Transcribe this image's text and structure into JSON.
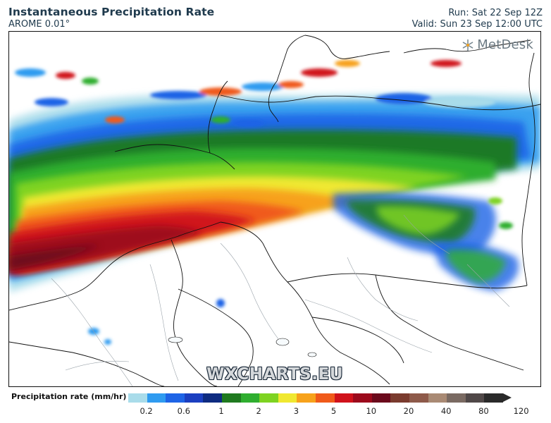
{
  "header": {
    "title": "Instantaneous Precipitation Rate",
    "model": "AROME 0.01°",
    "run": "Run: Sat 22 Sep 12Z",
    "valid": "Valid: Sun 23 Sep 12:00 UTC"
  },
  "branding": {
    "logo_text": "MetDesk",
    "logo_icon": "snowflake-icon",
    "watermark": "WXCHARTS.EU"
  },
  "legend": {
    "title": "Precipitation rate (mm/hr)",
    "colors": [
      "#a9dcea",
      "#2f9bf0",
      "#1e64e6",
      "#1b3fc0",
      "#0e2b80",
      "#1f7a1f",
      "#2fae2f",
      "#7ed321",
      "#f0e830",
      "#f7a21b",
      "#f05a1a",
      "#d0121b",
      "#9c0a1c",
      "#6b0a1c",
      "#7a3b2e",
      "#8e5a4a",
      "#a98a74",
      "#7a6a62",
      "#504848",
      "#2a2a2a"
    ],
    "labels": [
      "0.2",
      "0.6",
      "1",
      "2",
      "3",
      "5",
      "10",
      "20",
      "40",
      "80",
      "120"
    ]
  },
  "colors": {
    "text": "#1f3a4d",
    "border": "#111111"
  }
}
